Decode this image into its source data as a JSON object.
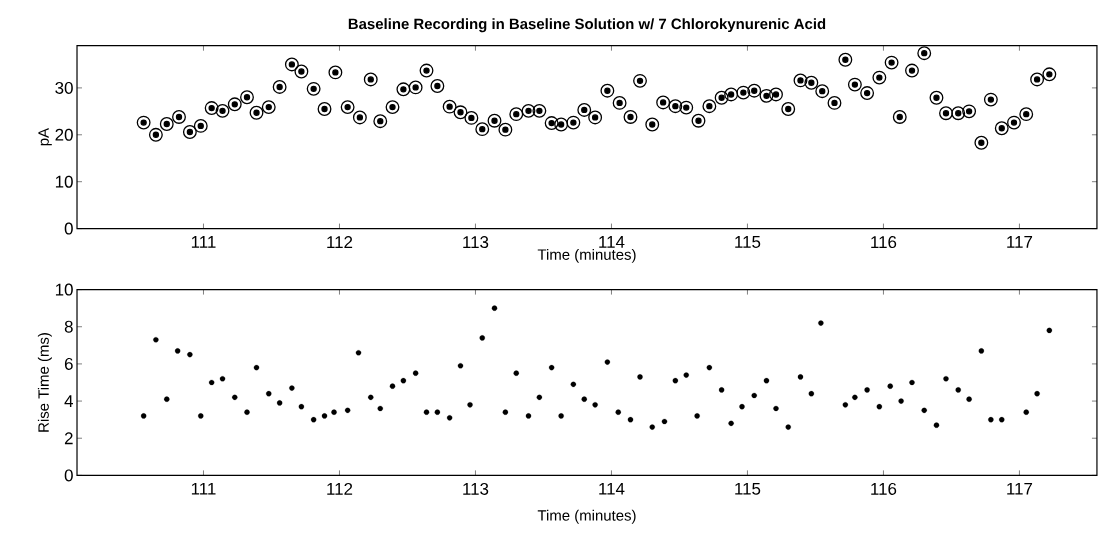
{
  "chart_data": [
    {
      "type": "scatter",
      "title": "Baseline Recording in Baseline Solution w/ 7 Chlorokynurenic Acid",
      "xlabel": "Time (minutes)",
      "ylabel": "pA",
      "marker": "circle",
      "color": "#000000",
      "xlim": [
        110.07,
        117.57
      ],
      "ylim": [
        0,
        39
      ],
      "xticks": [
        111,
        112,
        113,
        114,
        115,
        116,
        117
      ],
      "yticks": [
        0,
        10,
        20,
        30
      ],
      "x": [
        110.56,
        110.65,
        110.73,
        110.82,
        110.9,
        110.98,
        111.06,
        111.14,
        111.23,
        111.32,
        111.39,
        111.48,
        111.56,
        111.65,
        111.72,
        111.81,
        111.89,
        111.97,
        112.06,
        112.15,
        112.23,
        112.3,
        112.39,
        112.47,
        112.56,
        112.64,
        112.72,
        112.81,
        112.89,
        112.97,
        113.05,
        113.14,
        113.22,
        113.3,
        113.39,
        113.47,
        113.56,
        113.63,
        113.72,
        113.8,
        113.88,
        113.97,
        114.06,
        114.14,
        114.21,
        114.3,
        114.38,
        114.47,
        114.55,
        114.64,
        114.72,
        114.81,
        114.88,
        114.97,
        115.05,
        115.14,
        115.21,
        115.3,
        115.39,
        115.47,
        115.55,
        115.64,
        115.72,
        115.79,
        115.88,
        115.97,
        116.06,
        116.12,
        116.21,
        116.3,
        116.39,
        116.46,
        116.55,
        116.63,
        116.72,
        116.79,
        116.87,
        116.96,
        117.05,
        117.13,
        117.22
      ],
      "values": [
        22.6,
        20.0,
        22.3,
        23.8,
        20.6,
        21.9,
        25.7,
        25.1,
        26.5,
        28.0,
        24.7,
        25.9,
        30.2,
        35.0,
        33.5,
        29.8,
        25.5,
        33.3,
        25.9,
        23.7,
        31.8,
        22.9,
        25.9,
        29.7,
        30.1,
        33.7,
        30.4,
        26.0,
        24.8,
        23.6,
        21.2,
        23.0,
        21.1,
        24.4,
        25.1,
        25.1,
        22.5,
        22.2,
        22.6,
        25.3,
        23.7,
        29.4,
        26.8,
        23.8,
        31.5,
        22.2,
        26.9,
        26.1,
        25.8,
        23.0,
        26.1,
        27.9,
        28.6,
        29.0,
        29.4,
        28.3,
        28.6,
        25.5,
        31.6,
        31.1,
        29.3,
        26.8,
        36.0,
        30.7,
        28.9,
        32.2,
        35.4,
        23.8,
        33.7,
        37.4,
        27.9,
        24.6,
        24.6,
        25.0,
        18.3,
        27.5,
        21.4,
        22.6,
        24.4,
        31.8,
        32.9
      ]
    },
    {
      "type": "scatter",
      "xlabel": "Time (minutes)",
      "ylabel": "Rise Time (ms)",
      "marker": "circle",
      "color": "#000000",
      "xlim": [
        110.07,
        117.57
      ],
      "ylim": [
        0,
        10
      ],
      "xticks": [
        111,
        112,
        113,
        114,
        115,
        116,
        117
      ],
      "yticks": [
        0,
        2,
        4,
        6,
        8,
        10
      ],
      "x": [
        110.56,
        110.65,
        110.73,
        110.81,
        110.9,
        110.98,
        111.06,
        111.14,
        111.23,
        111.32,
        111.39,
        111.48,
        111.56,
        111.65,
        111.72,
        111.81,
        111.89,
        111.96,
        112.06,
        112.14,
        112.23,
        112.3,
        112.39,
        112.47,
        112.56,
        112.64,
        112.72,
        112.81,
        112.89,
        112.96,
        113.05,
        113.14,
        113.22,
        113.3,
        113.39,
        113.47,
        113.56,
        113.63,
        113.72,
        113.8,
        113.88,
        113.97,
        114.05,
        114.14,
        114.21,
        114.3,
        114.39,
        114.47,
        114.55,
        114.63,
        114.72,
        114.81,
        114.88,
        114.96,
        115.05,
        115.14,
        115.21,
        115.3,
        115.39,
        115.47,
        115.54,
        115.72,
        115.79,
        115.88,
        115.97,
        116.05,
        116.13,
        116.21,
        116.3,
        116.39,
        116.46,
        116.55,
        116.63,
        116.72,
        116.79,
        116.87,
        117.05,
        117.13,
        117.22
      ],
      "values": [
        3.2,
        7.3,
        4.1,
        6.7,
        6.5,
        3.2,
        5.0,
        5.2,
        4.2,
        3.4,
        5.8,
        4.4,
        3.9,
        4.7,
        3.7,
        3.0,
        3.2,
        3.4,
        3.5,
        6.6,
        4.2,
        3.6,
        4.8,
        5.1,
        5.5,
        3.4,
        3.4,
        3.1,
        5.9,
        3.8,
        7.4,
        9.0,
        3.4,
        5.5,
        3.2,
        4.2,
        5.8,
        3.2,
        4.9,
        4.1,
        3.8,
        6.1,
        3.4,
        3.0,
        5.3,
        2.6,
        2.9,
        5.1,
        5.4,
        3.2,
        5.8,
        4.6,
        2.8,
        3.7,
        4.3,
        5.1,
        3.6,
        2.6,
        5.3,
        4.4,
        8.2,
        3.8,
        4.2,
        4.6,
        3.7,
        4.8,
        4.0,
        5.0,
        3.5,
        2.7,
        5.2,
        4.6,
        4.1,
        6.7,
        3.0,
        3.0,
        3.4,
        4.4,
        7.8
      ]
    }
  ]
}
